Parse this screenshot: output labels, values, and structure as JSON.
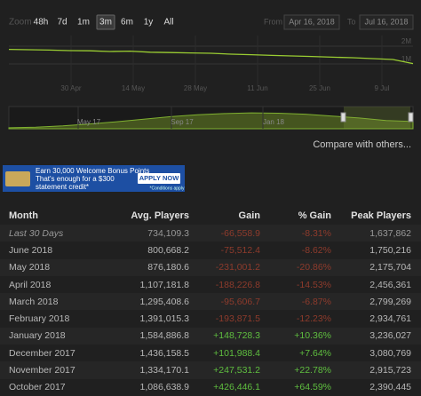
{
  "zoom": {
    "label": "Zoom",
    "buttons": [
      "48h",
      "7d",
      "1m",
      "3m",
      "6m",
      "1y",
      "All"
    ],
    "active": 3
  },
  "range": {
    "from_label": "From",
    "from": "Apr 16, 2018",
    "to_label": "To",
    "to": "Jul 16, 2018"
  },
  "chart_data": [
    {
      "type": "line",
      "color": "#9acd32",
      "values": [
        1820000,
        1800000,
        1780000,
        1750000,
        1740000,
        1700000,
        1720000,
        1660000,
        1640000,
        1620000,
        1600000,
        1550000,
        1520000,
        1480000,
        1450000,
        1420000,
        1380000,
        1350000,
        1300000,
        1250000,
        1020000
      ],
      "ylim": [
        0,
        2600000
      ],
      "yticks": [
        {
          "value": 1000000,
          "label": "1M"
        },
        {
          "value": 2000000,
          "label": "2M"
        }
      ],
      "x_labels": [
        "30 Apr",
        "14 May",
        "28 May",
        "11 Jun",
        "25 Jun",
        "9 Jul"
      ],
      "grid": true
    },
    {
      "type": "area",
      "color": "#7fb030",
      "values": [
        150000,
        250000,
        450000,
        750000,
        1100000,
        1500000,
        1900000,
        2200000,
        2400000,
        2500000,
        2450000,
        2300000,
        2000000,
        1700000,
        1300000,
        1150000
      ],
      "ylim": [
        0,
        3500000
      ],
      "x_labels": [
        "May 17",
        "Sep 17",
        "Jan 18"
      ]
    }
  ],
  "compare": "Compare with others...",
  "ad": {
    "line1": "Earn 30,000 Welcome Bonus Points",
    "line2": "That's enough for a $300",
    "line3": "statement credit*",
    "button": "APPLY NOW",
    "note": "*Conditions apply"
  },
  "table": {
    "columns": [
      "Month",
      "Avg. Players",
      "Gain",
      "% Gain",
      "Peak Players"
    ],
    "rows": [
      [
        "Last 30 Days",
        "734,109.3",
        "-66,558.9",
        "-8.31%",
        "1,637,862"
      ],
      [
        "June 2018",
        "800,668.2",
        "-75,512.4",
        "-8.62%",
        "1,750,216"
      ],
      [
        "May 2018",
        "876,180.6",
        "-231,001.2",
        "-20.86%",
        "2,175,704"
      ],
      [
        "April 2018",
        "1,107,181.8",
        "-188,226.8",
        "-14.53%",
        "2,456,361"
      ],
      [
        "March 2018",
        "1,295,408.6",
        "-95,606.7",
        "-6.87%",
        "2,799,269"
      ],
      [
        "February 2018",
        "1,391,015.3",
        "-193,871.5",
        "-12.23%",
        "2,934,761"
      ],
      [
        "January 2018",
        "1,584,886.8",
        "+148,728.3",
        "+10.36%",
        "3,236,027"
      ],
      [
        "December 2017",
        "1,436,158.5",
        "+101,988.4",
        "+7.64%",
        "3,080,769"
      ],
      [
        "November 2017",
        "1,334,170.1",
        "+247,531.2",
        "+22.78%",
        "2,915,723"
      ],
      [
        "October 2017",
        "1,086,638.9",
        "+426,446.1",
        "+64.59%",
        "2,390,445"
      ]
    ]
  }
}
